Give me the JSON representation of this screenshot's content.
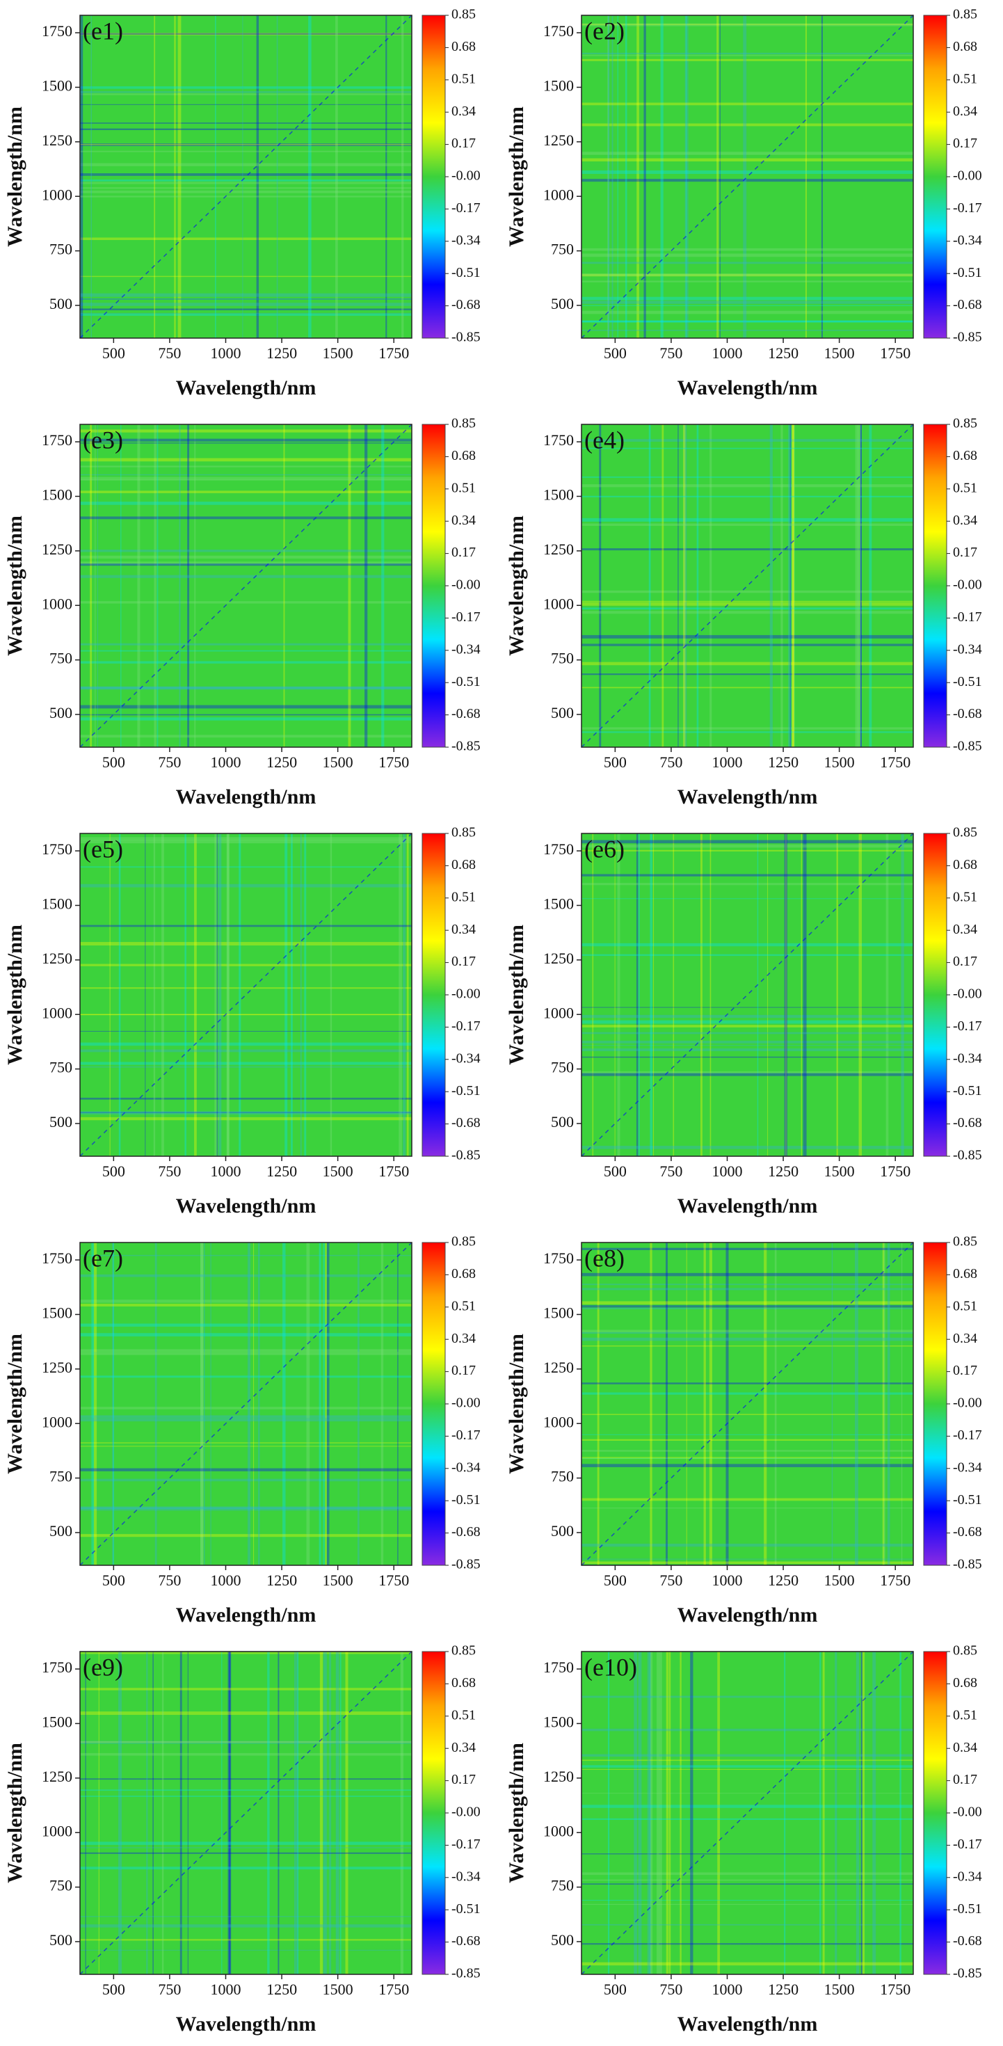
{
  "chart_data": [
    {
      "type": "heatmap",
      "title": "(e1)",
      "xlabel": "Wavelength/nm",
      "ylabel": "Wavelength/nm",
      "xlim": [
        350,
        1830
      ],
      "ylim": [
        350,
        1830
      ],
      "xticks": [
        500,
        750,
        1000,
        1250,
        1500,
        1750
      ],
      "yticks": [
        500,
        750,
        1000,
        1250,
        1500,
        1750
      ],
      "clim": [
        -0.85,
        0.85
      ],
      "cticks": [
        0.85,
        0.68,
        0.51,
        0.34,
        0.17,
        {
          "value": 0,
          "label": "-0.00"
        },
        -0.17,
        -0.34,
        -0.51,
        -0.68,
        -0.85
      ],
      "colormap": [
        "#8a2be2",
        "#0000ff",
        "#00e5ff",
        "#3cd23c",
        "#ffff00",
        "#ffa500",
        "#ff0000"
      ]
    },
    {
      "type": "heatmap",
      "title": "(e2)",
      "xlabel": "Wavelength/nm",
      "ylabel": "Wavelength/nm",
      "xlim": [
        350,
        1830
      ],
      "ylim": [
        350,
        1830
      ],
      "xticks": [
        500,
        750,
        1000,
        1250,
        1500,
        1750
      ],
      "yticks": [
        500,
        750,
        1000,
        1250,
        1500,
        1750
      ],
      "clim": [
        -0.85,
        0.85
      ],
      "cticks": [
        0.85,
        0.68,
        0.51,
        0.34,
        0.17,
        {
          "value": 0,
          "label": "-0.00"
        },
        -0.17,
        -0.34,
        -0.51,
        -0.68,
        -0.85
      ],
      "colormap": [
        "#8a2be2",
        "#0000ff",
        "#00e5ff",
        "#3cd23c",
        "#ffff00",
        "#ffa500",
        "#ff0000"
      ]
    },
    {
      "type": "heatmap",
      "title": "(e3)",
      "xlabel": "Wavelength/nm",
      "ylabel": "Wavelength/nm",
      "xlim": [
        350,
        1830
      ],
      "ylim": [
        350,
        1830
      ],
      "xticks": [
        500,
        750,
        1000,
        1250,
        1500,
        1750
      ],
      "yticks": [
        500,
        750,
        1000,
        1250,
        1500,
        1750
      ],
      "clim": [
        -0.85,
        0.85
      ],
      "cticks": [
        0.85,
        0.68,
        0.51,
        0.34,
        0.17,
        {
          "value": 0,
          "label": "-0.00"
        },
        -0.17,
        -0.34,
        -0.51,
        -0.68,
        -0.85
      ],
      "colormap": [
        "#8a2be2",
        "#0000ff",
        "#00e5ff",
        "#3cd23c",
        "#ffff00",
        "#ffa500",
        "#ff0000"
      ]
    },
    {
      "type": "heatmap",
      "title": "(e4)",
      "xlabel": "Wavelength/nm",
      "ylabel": "Wavelength/nm",
      "xlim": [
        350,
        1830
      ],
      "ylim": [
        350,
        1830
      ],
      "xticks": [
        500,
        750,
        1000,
        1250,
        1500,
        1750
      ],
      "yticks": [
        500,
        750,
        1000,
        1250,
        1500,
        1750
      ],
      "clim": [
        -0.85,
        0.85
      ],
      "cticks": [
        0.85,
        0.68,
        0.51,
        0.34,
        0.17,
        {
          "value": 0,
          "label": "-0.00"
        },
        -0.17,
        -0.34,
        -0.51,
        -0.68,
        -0.85
      ],
      "colormap": [
        "#8a2be2",
        "#0000ff",
        "#00e5ff",
        "#3cd23c",
        "#ffff00",
        "#ffa500",
        "#ff0000"
      ]
    },
    {
      "type": "heatmap",
      "title": "(e5)",
      "xlabel": "Wavelength/nm",
      "ylabel": "Wavelength/nm",
      "xlim": [
        350,
        1830
      ],
      "ylim": [
        350,
        1830
      ],
      "xticks": [
        500,
        750,
        1000,
        1250,
        1500,
        1750
      ],
      "yticks": [
        500,
        750,
        1000,
        1250,
        1500,
        1750
      ],
      "clim": [
        -0.85,
        0.85
      ],
      "cticks": [
        0.85,
        0.68,
        0.51,
        0.34,
        0.17,
        {
          "value": 0,
          "label": "-0.00"
        },
        -0.17,
        -0.34,
        -0.51,
        -0.68,
        -0.85
      ],
      "colormap": [
        "#8a2be2",
        "#0000ff",
        "#00e5ff",
        "#3cd23c",
        "#ffff00",
        "#ffa500",
        "#ff0000"
      ]
    },
    {
      "type": "heatmap",
      "title": "(e6)",
      "xlabel": "Wavelength/nm",
      "ylabel": "Wavelength/nm",
      "xlim": [
        350,
        1830
      ],
      "ylim": [
        350,
        1830
      ],
      "xticks": [
        500,
        750,
        1000,
        1250,
        1500,
        1750
      ],
      "yticks": [
        500,
        750,
        1000,
        1250,
        1500,
        1750
      ],
      "clim": [
        -0.85,
        0.85
      ],
      "cticks": [
        0.85,
        0.68,
        0.51,
        0.34,
        0.17,
        {
          "value": 0,
          "label": "-0.00"
        },
        -0.17,
        -0.34,
        -0.51,
        -0.68,
        -0.85
      ],
      "colormap": [
        "#8a2be2",
        "#0000ff",
        "#00e5ff",
        "#3cd23c",
        "#ffff00",
        "#ffa500",
        "#ff0000"
      ]
    },
    {
      "type": "heatmap",
      "title": "(e7)",
      "xlabel": "Wavelength/nm",
      "ylabel": "Wavelength/nm",
      "xlim": [
        350,
        1830
      ],
      "ylim": [
        350,
        1830
      ],
      "xticks": [
        500,
        750,
        1000,
        1250,
        1500,
        1750
      ],
      "yticks": [
        500,
        750,
        1000,
        1250,
        1500,
        1750
      ],
      "clim": [
        -0.85,
        0.85
      ],
      "cticks": [
        0.85,
        0.68,
        0.51,
        0.34,
        0.17,
        {
          "value": 0,
          "label": "-0.00"
        },
        -0.17,
        -0.34,
        -0.51,
        -0.68,
        -0.85
      ],
      "colormap": [
        "#8a2be2",
        "#0000ff",
        "#00e5ff",
        "#3cd23c",
        "#ffff00",
        "#ffa500",
        "#ff0000"
      ]
    },
    {
      "type": "heatmap",
      "title": "(e8)",
      "xlabel": "Wavelength/nm",
      "ylabel": "Wavelength/nm",
      "xlim": [
        350,
        1830
      ],
      "ylim": [
        350,
        1830
      ],
      "xticks": [
        500,
        750,
        1000,
        1250,
        1500,
        1750
      ],
      "yticks": [
        500,
        750,
        1000,
        1250,
        1500,
        1750
      ],
      "clim": [
        -0.85,
        0.85
      ],
      "cticks": [
        0.85,
        0.68,
        0.51,
        0.34,
        0.17,
        {
          "value": 0,
          "label": "-0.00"
        },
        -0.17,
        -0.34,
        -0.51,
        -0.68,
        -0.85
      ],
      "colormap": [
        "#8a2be2",
        "#0000ff",
        "#00e5ff",
        "#3cd23c",
        "#ffff00",
        "#ffa500",
        "#ff0000"
      ]
    },
    {
      "type": "heatmap",
      "title": "(e9)",
      "xlabel": "Wavelength/nm",
      "ylabel": "Wavelength/nm",
      "xlim": [
        350,
        1830
      ],
      "ylim": [
        350,
        1830
      ],
      "xticks": [
        500,
        750,
        1000,
        1250,
        1500,
        1750
      ],
      "yticks": [
        500,
        750,
        1000,
        1250,
        1500,
        1750
      ],
      "clim": [
        -0.85,
        0.85
      ],
      "cticks": [
        0.85,
        0.68,
        0.51,
        0.34,
        0.17,
        {
          "value": 0,
          "label": "-0.00"
        },
        -0.17,
        -0.34,
        -0.51,
        -0.68,
        -0.85
      ],
      "colormap": [
        "#8a2be2",
        "#0000ff",
        "#00e5ff",
        "#3cd23c",
        "#ffff00",
        "#ffa500",
        "#ff0000"
      ]
    },
    {
      "type": "heatmap",
      "title": "(e10)",
      "xlabel": "Wavelength/nm",
      "ylabel": "Wavelength/nm",
      "xlim": [
        350,
        1830
      ],
      "ylim": [
        350,
        1830
      ],
      "xticks": [
        500,
        750,
        1000,
        1250,
        1500,
        1750
      ],
      "yticks": [
        500,
        750,
        1000,
        1250,
        1500,
        1750
      ],
      "clim": [
        -0.85,
        0.85
      ],
      "cticks": [
        0.85,
        0.68,
        0.51,
        0.34,
        0.17,
        {
          "value": 0,
          "label": "-0.00"
        },
        -0.17,
        -0.34,
        -0.51,
        -0.68,
        -0.85
      ],
      "colormap": [
        "#8a2be2",
        "#0000ff",
        "#00e5ff",
        "#3cd23c",
        "#ffff00",
        "#ffa500",
        "#ff0000"
      ]
    }
  ]
}
